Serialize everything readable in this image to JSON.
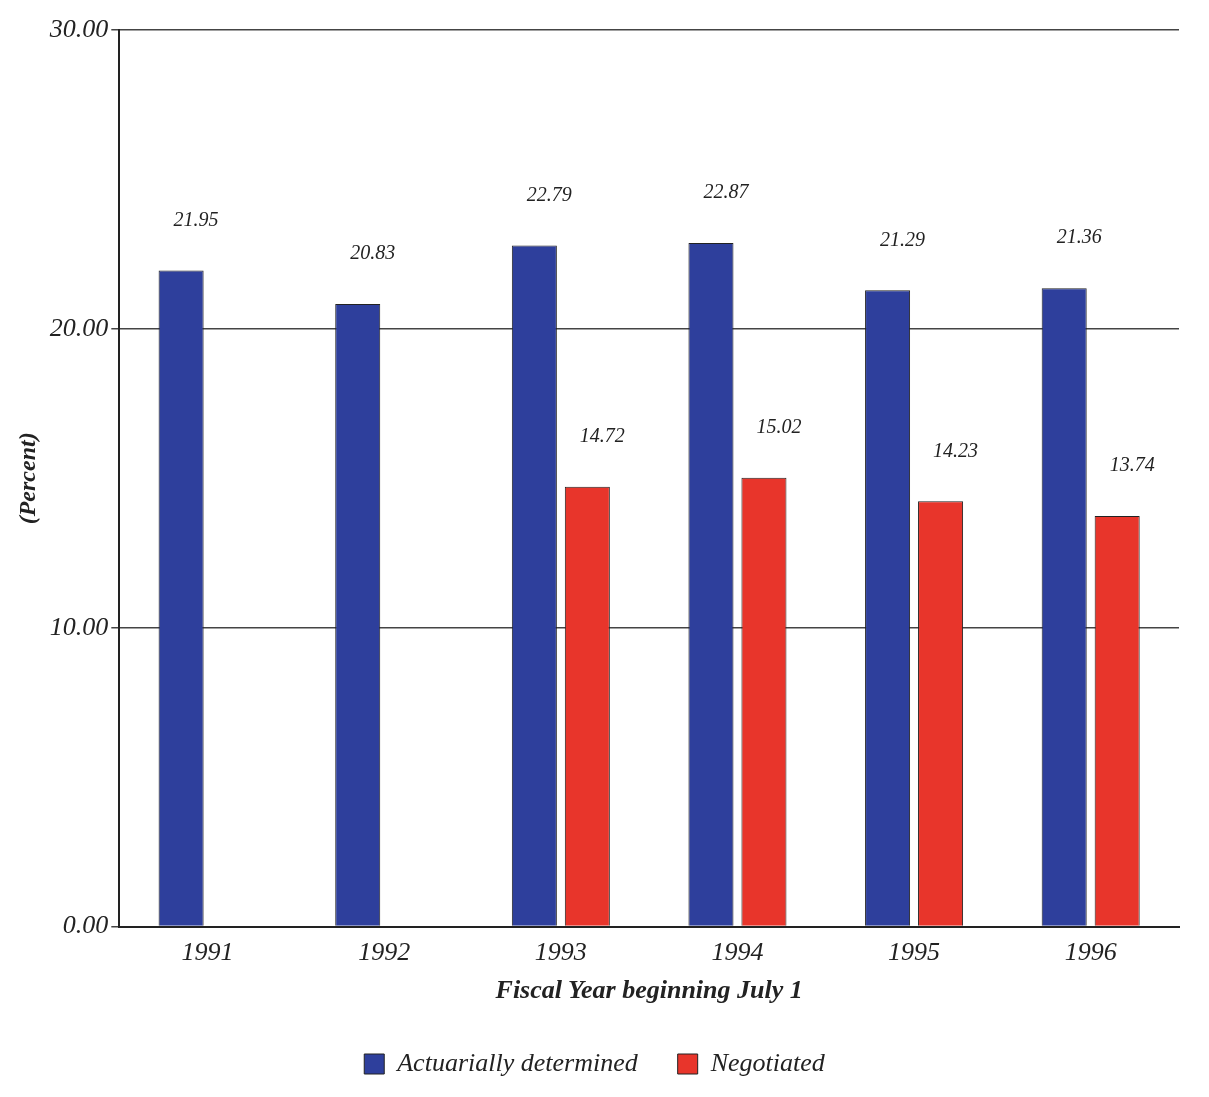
{
  "chart_data": {
    "type": "bar",
    "xlabel": "Fiscal Year beginning July 1",
    "ylabel": "(Percent)",
    "categories": [
      "1991",
      "1992",
      "1993",
      "1994",
      "1995",
      "1996"
    ],
    "series": [
      {
        "name": "Actuarially determined",
        "color": "#2e3f9c",
        "values": [
          21.95,
          20.83,
          22.79,
          22.87,
          21.29,
          21.36
        ]
      },
      {
        "name": "Negotiated",
        "color": "#e8352b",
        "values": [
          null,
          null,
          14.72,
          15.02,
          14.23,
          13.74
        ]
      }
    ],
    "ylim": [
      0,
      30
    ],
    "yticks": [
      {
        "value": 0,
        "label": "0.00"
      },
      {
        "value": 10,
        "label": "10.00"
      },
      {
        "value": 20,
        "label": "20.00"
      },
      {
        "value": 30,
        "label": "30.00"
      }
    ],
    "grid": "y",
    "legend": "bottom",
    "data_labels": true
  }
}
